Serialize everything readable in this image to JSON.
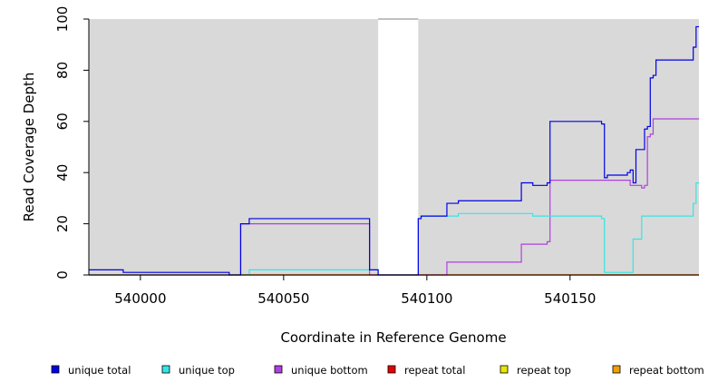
{
  "chart_data": {
    "type": "line",
    "xlabel": "Coordinate in Reference Genome",
    "ylabel": "Read Coverage Depth",
    "xlim": [
      539982,
      540195
    ],
    "ylim": [
      0,
      100
    ],
    "x_ticks": [
      540000,
      540050,
      540100,
      540150
    ],
    "y_ticks": [
      0,
      20,
      40,
      60,
      80,
      100
    ],
    "grid": false,
    "background": "#d9d9d9",
    "excluded_regions": [
      [
        540083,
        540097
      ]
    ],
    "legend_position": "bottom",
    "series": [
      {
        "name": "unique total",
        "color": "#0000e6",
        "points": [
          [
            539982,
            2
          ],
          [
            539994,
            2
          ],
          [
            539994,
            1
          ],
          [
            540031,
            1
          ],
          [
            540031,
            0
          ],
          [
            540035,
            0
          ],
          [
            540035,
            20
          ],
          [
            540038,
            20
          ],
          [
            540038,
            22
          ],
          [
            540080,
            22
          ],
          [
            540080,
            2
          ],
          [
            540083,
            2
          ],
          [
            540083,
            0
          ],
          [
            540097,
            0
          ],
          [
            540097,
            22
          ],
          [
            540098,
            22
          ],
          [
            540098,
            23
          ],
          [
            540107,
            23
          ],
          [
            540107,
            28
          ],
          [
            540111,
            28
          ],
          [
            540111,
            29
          ],
          [
            540133,
            29
          ],
          [
            540133,
            36
          ],
          [
            540137,
            36
          ],
          [
            540137,
            35
          ],
          [
            540142,
            35
          ],
          [
            540142,
            36
          ],
          [
            540143,
            36
          ],
          [
            540143,
            60
          ],
          [
            540161,
            60
          ],
          [
            540161,
            59
          ],
          [
            540162,
            59
          ],
          [
            540162,
            38
          ],
          [
            540163,
            38
          ],
          [
            540163,
            39
          ],
          [
            540170,
            39
          ],
          [
            540170,
            40
          ],
          [
            540171,
            40
          ],
          [
            540171,
            41
          ],
          [
            540172,
            41
          ],
          [
            540172,
            36
          ],
          [
            540173,
            36
          ],
          [
            540173,
            49
          ],
          [
            540176,
            49
          ],
          [
            540176,
            57
          ],
          [
            540177,
            57
          ],
          [
            540177,
            58
          ],
          [
            540178,
            58
          ],
          [
            540178,
            77
          ],
          [
            540179,
            77
          ],
          [
            540179,
            78
          ],
          [
            540180,
            78
          ],
          [
            540180,
            84
          ],
          [
            540193,
            84
          ],
          [
            540193,
            89
          ],
          [
            540194,
            89
          ],
          [
            540194,
            97
          ],
          [
            540195,
            97
          ]
        ]
      },
      {
        "name": "unique top",
        "color": "#33e6e6",
        "points": [
          [
            539982,
            0
          ],
          [
            540038,
            0
          ],
          [
            540038,
            2
          ],
          [
            540080,
            2
          ],
          [
            540080,
            2
          ],
          [
            540083,
            2
          ],
          [
            540083,
            0
          ],
          [
            540097,
            0
          ],
          [
            540097,
            22
          ],
          [
            540098,
            22
          ],
          [
            540098,
            23
          ],
          [
            540111,
            23
          ],
          [
            540111,
            24
          ],
          [
            540137,
            24
          ],
          [
            540137,
            23
          ],
          [
            540161,
            23
          ],
          [
            540161,
            22
          ],
          [
            540162,
            22
          ],
          [
            540162,
            1
          ],
          [
            540172,
            1
          ],
          [
            540172,
            14
          ],
          [
            540175,
            14
          ],
          [
            540175,
            23
          ],
          [
            540193,
            23
          ],
          [
            540193,
            28
          ],
          [
            540194,
            28
          ],
          [
            540194,
            36
          ],
          [
            540195,
            36
          ]
        ]
      },
      {
        "name": "unique bottom",
        "color": "#b040e0",
        "points": [
          [
            539982,
            0
          ],
          [
            540035,
            0
          ],
          [
            540035,
            20
          ],
          [
            540080,
            20
          ],
          [
            540080,
            0
          ],
          [
            540107,
            0
          ],
          [
            540107,
            5
          ],
          [
            540133,
            5
          ],
          [
            540133,
            12
          ],
          [
            540142,
            12
          ],
          [
            540142,
            13
          ],
          [
            540143,
            13
          ],
          [
            540143,
            37
          ],
          [
            540171,
            37
          ],
          [
            540171,
            35
          ],
          [
            540175,
            35
          ],
          [
            540175,
            34
          ],
          [
            540176,
            34
          ],
          [
            540176,
            35
          ],
          [
            540177,
            35
          ],
          [
            540177,
            54
          ],
          [
            540178,
            54
          ],
          [
            540178,
            55
          ],
          [
            540179,
            55
          ],
          [
            540179,
            61
          ],
          [
            540195,
            61
          ]
        ]
      },
      {
        "name": "repeat total",
        "color": "#e60000",
        "points": [
          [
            539982,
            0
          ],
          [
            540195,
            0
          ]
        ]
      },
      {
        "name": "repeat top",
        "color": "#e6e600",
        "points": [
          [
            539982,
            0
          ],
          [
            540195,
            0
          ]
        ]
      },
      {
        "name": "repeat bottom",
        "color": "#f0a000",
        "points": [
          [
            539982,
            0
          ],
          [
            540195,
            0
          ]
        ]
      }
    ]
  }
}
